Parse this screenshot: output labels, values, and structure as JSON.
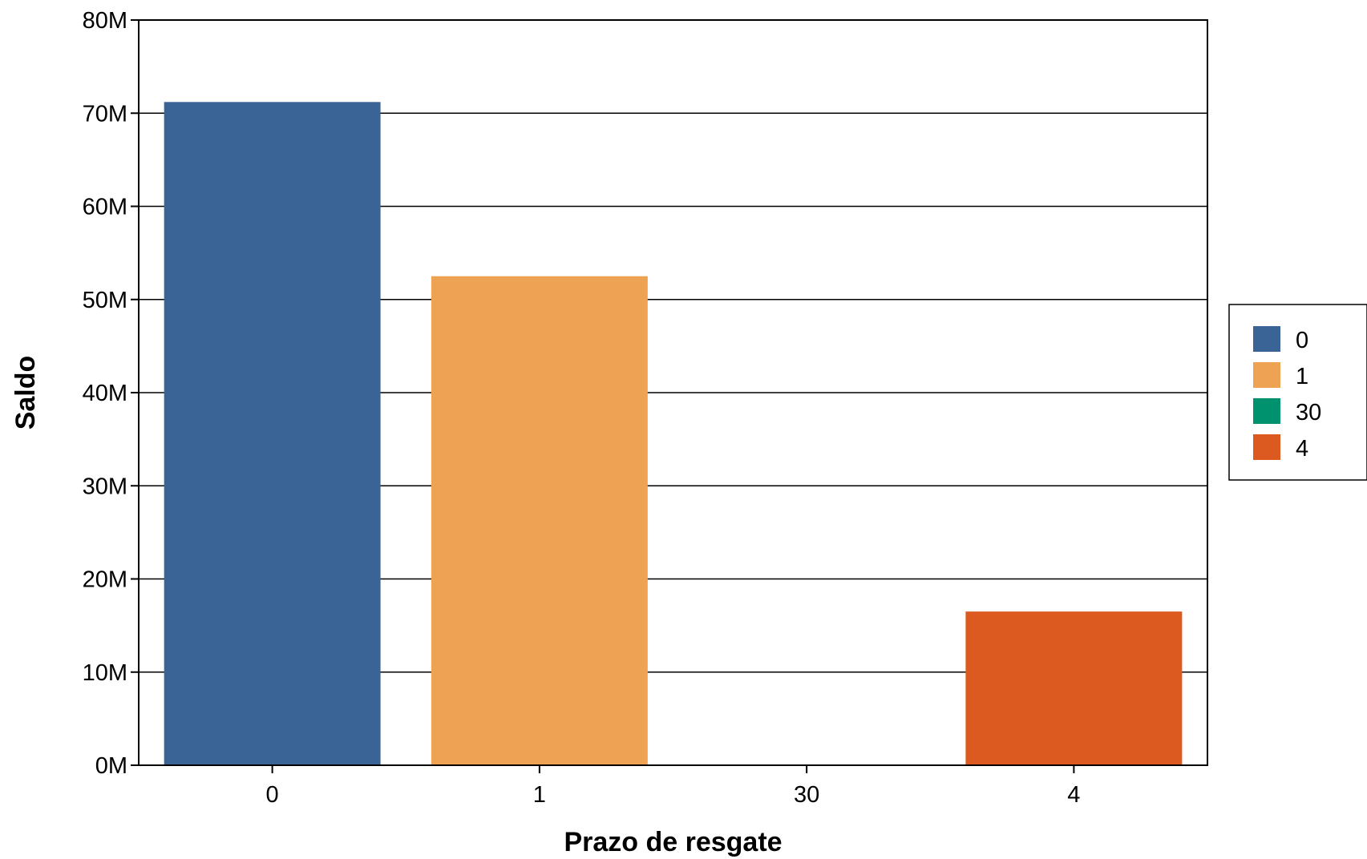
{
  "chart_data": {
    "type": "bar",
    "categories": [
      "0",
      "1",
      "30",
      "4"
    ],
    "values": [
      71200000,
      52500000,
      0,
      16500000
    ],
    "colors": [
      "#3b6496",
      "#eea354",
      "#00916e",
      "#dc591f"
    ],
    "xlabel": "Prazo de resgate",
    "ylabel": "Saldo",
    "ylim": [
      0,
      80000000
    ],
    "yticks": [
      {
        "value": 0,
        "label": "0M"
      },
      {
        "value": 10000000,
        "label": "10M"
      },
      {
        "value": 20000000,
        "label": "20M"
      },
      {
        "value": 30000000,
        "label": "30M"
      },
      {
        "value": 40000000,
        "label": "40M"
      },
      {
        "value": 50000000,
        "label": "50M"
      },
      {
        "value": 60000000,
        "label": "60M"
      },
      {
        "value": 70000000,
        "label": "70M"
      },
      {
        "value": 80000000,
        "label": "80M"
      }
    ],
    "grid": true,
    "legend": {
      "placement": "right",
      "entries": [
        {
          "label": "0",
          "color": "#3b6496"
        },
        {
          "label": "1",
          "color": "#eea354"
        },
        {
          "label": "30",
          "color": "#00916e"
        },
        {
          "label": "4",
          "color": "#dc591f"
        }
      ]
    }
  }
}
